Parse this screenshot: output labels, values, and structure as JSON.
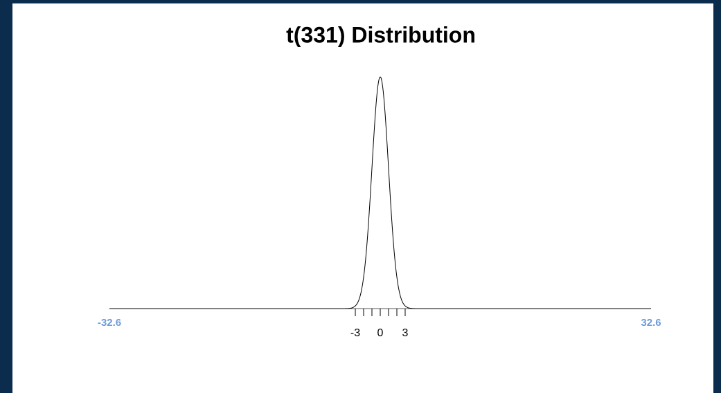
{
  "chart_data": {
    "type": "t-distribution",
    "title": "t(331) Distribution",
    "df": 331,
    "xlim": [
      -32.6,
      32.6
    ],
    "ylim": [
      0,
      0.4
    ],
    "xticks": [
      -3,
      -2,
      -1,
      0,
      1,
      2,
      3
    ],
    "labeled_xticks": [
      -3,
      0,
      3
    ],
    "color": "#000000",
    "limit_label_color": "#6f9bd8"
  }
}
